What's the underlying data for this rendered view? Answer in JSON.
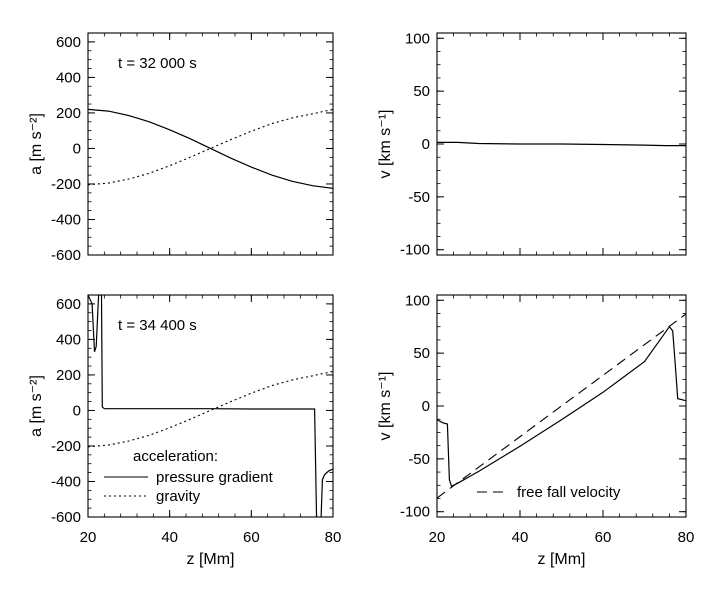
{
  "chart_data": [
    {
      "type": "line",
      "panel": "top-left",
      "annotation": "t = 32 000 s",
      "xlabel": "",
      "ylabel": "a [m s⁻²]",
      "xlim": [
        20,
        80
      ],
      "ylim": [
        -600,
        650
      ],
      "xticks": [
        20,
        40,
        60,
        80
      ],
      "yticks": [
        600,
        400,
        200,
        0,
        -200,
        -400,
        -600
      ],
      "x_ticklabels_visible": false,
      "series": [
        {
          "style": "solid",
          "x": [
            20,
            25,
            30,
            35,
            40,
            45,
            50,
            55,
            60,
            65,
            70,
            75,
            80
          ],
          "y": [
            220,
            210,
            185,
            150,
            105,
            55,
            0,
            -55,
            -105,
            -150,
            -185,
            -210,
            -225
          ]
        },
        {
          "style": "dotted",
          "x": [
            20,
            25,
            30,
            35,
            40,
            45,
            50,
            55,
            60,
            65,
            70,
            75,
            80
          ],
          "y": [
            -205,
            -195,
            -172,
            -140,
            -97,
            -50,
            0,
            50,
            97,
            140,
            172,
            195,
            220
          ]
        }
      ]
    },
    {
      "type": "line",
      "panel": "top-right",
      "annotation": "",
      "xlabel": "",
      "ylabel": "v [km s⁻¹]",
      "xlim": [
        20,
        80
      ],
      "ylim": [
        -105,
        105
      ],
      "xticks": [
        20,
        40,
        60,
        80
      ],
      "yticks": [
        100,
        50,
        0,
        -50,
        -100
      ],
      "x_ticklabels_visible": false,
      "series": [
        {
          "style": "solid",
          "x": [
            20,
            25,
            30,
            40,
            50,
            60,
            70,
            75,
            80
          ],
          "y": [
            1.5,
            1.5,
            0.5,
            0,
            0,
            -0.5,
            -1,
            -1.5,
            -1.5
          ]
        }
      ]
    },
    {
      "type": "line",
      "panel": "bottom-left",
      "annotation": "t = 34 400 s",
      "xlabel": "z [Mm]",
      "ylabel": "a [m s⁻²]",
      "xlim": [
        20,
        80
      ],
      "ylim": [
        -600,
        650
      ],
      "xticks": [
        20,
        40,
        60,
        80
      ],
      "yticks": [
        600,
        400,
        200,
        0,
        -200,
        -400,
        -600
      ],
      "x_ticklabels_visible": true,
      "legend": {
        "title": "acceleration:",
        "placement": "lower-left",
        "entries": [
          {
            "label": "pressure gradient",
            "style": "solid"
          },
          {
            "label": "gravity",
            "style": "dotted"
          }
        ]
      },
      "series": [
        {
          "style": "solid",
          "x": [
            20,
            21,
            21.6,
            22,
            22.6,
            23,
            23.3,
            23.5,
            24,
            30,
            40,
            50,
            60,
            70,
            75,
            75.5,
            76,
            76.6,
            77,
            77.4,
            78,
            79,
            80
          ],
          "y": [
            650,
            600,
            330,
            360,
            650,
            650,
            650,
            20,
            10,
            10,
            10,
            10,
            8,
            8,
            8,
            8,
            -650,
            -650,
            -650,
            -390,
            -360,
            -340,
            -330
          ]
        },
        {
          "style": "dotted",
          "x": [
            20,
            25,
            30,
            35,
            40,
            45,
            50,
            55,
            60,
            65,
            70,
            75,
            80
          ],
          "y": [
            -205,
            -195,
            -172,
            -140,
            -97,
            -50,
            0,
            50,
            97,
            140,
            172,
            195,
            220
          ]
        }
      ]
    },
    {
      "type": "line",
      "panel": "bottom-right",
      "annotation": "",
      "xlabel": "z [Mm]",
      "ylabel": "v [km s⁻¹]",
      "xlim": [
        20,
        80
      ],
      "ylim": [
        -105,
        105
      ],
      "xticks": [
        20,
        40,
        60,
        80
      ],
      "yticks": [
        100,
        50,
        0,
        -50,
        -100
      ],
      "x_ticklabels_visible": true,
      "legend": {
        "title": "",
        "placement": "lower-right",
        "entries": [
          {
            "label": "free fall velocity",
            "style": "dashed"
          }
        ]
      },
      "series": [
        {
          "style": "solid",
          "x": [
            20,
            21.5,
            22.5,
            23,
            23.5,
            25,
            30,
            40,
            50,
            60,
            70,
            76,
            76.8,
            77.4,
            78,
            79,
            80
          ],
          "y": [
            -13,
            -16,
            -17,
            -70,
            -76,
            -73,
            -62,
            -38,
            -13,
            13,
            42,
            75,
            71,
            40,
            7,
            6,
            5
          ]
        },
        {
          "style": "dashed",
          "x": [
            20,
            80
          ],
          "y": [
            -87,
            87
          ]
        }
      ]
    }
  ]
}
